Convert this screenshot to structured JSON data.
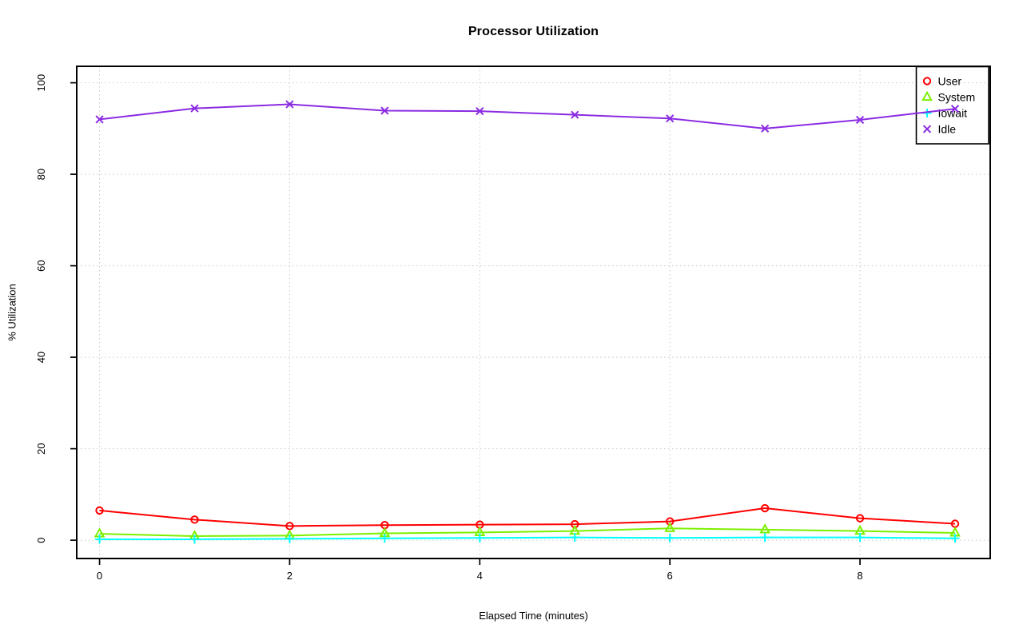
{
  "chart_data": {
    "type": "line",
    "title": "Processor Utilization",
    "xlabel": "Elapsed Time (minutes)",
    "ylabel": "% Utilization",
    "x": [
      0,
      1,
      2,
      3,
      4,
      5,
      6,
      7,
      8,
      9
    ],
    "xticks": [
      0,
      2,
      4,
      6,
      8
    ],
    "yticks": [
      0,
      20,
      40,
      60,
      80,
      100
    ],
    "xlim": [
      -0.24,
      9.37
    ],
    "ylim": [
      -4,
      103.6
    ],
    "grid": "dotted",
    "grid_color": "#c9c9c9",
    "axis_color": "#000000",
    "background_color": "#ffffff",
    "legend_position": "topright",
    "series": [
      {
        "name": "User",
        "color": "#ff0000",
        "marker": "circle",
        "marker_icon": "circle-marker-icon",
        "values": [
          6.5,
          4.5,
          3.1,
          3.3,
          3.4,
          3.5,
          4.1,
          7.0,
          4.8,
          3.6
        ]
      },
      {
        "name": "System",
        "color": "#7cf000",
        "marker": "triangle",
        "marker_icon": "triangle-marker-icon",
        "values": [
          1.4,
          0.9,
          1.0,
          1.5,
          1.7,
          2.0,
          2.6,
          2.3,
          2.0,
          1.6
        ]
      },
      {
        "name": "Iowait",
        "color": "#00ffff",
        "marker": "plus",
        "marker_icon": "plus-marker-icon",
        "values": [
          0.2,
          0.2,
          0.3,
          0.4,
          0.5,
          0.6,
          0.5,
          0.6,
          0.6,
          0.4
        ]
      },
      {
        "name": "Idle",
        "color": "#8b2be2",
        "marker": "x",
        "marker_icon": "x-marker-icon",
        "values": [
          92.0,
          94.4,
          95.3,
          93.9,
          93.8,
          93.0,
          92.2,
          90.0,
          91.9,
          94.3
        ]
      }
    ]
  }
}
